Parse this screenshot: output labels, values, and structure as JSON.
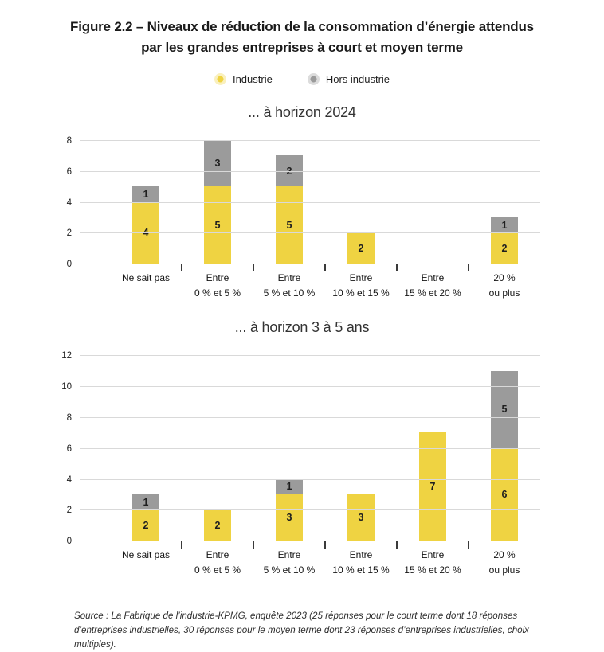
{
  "figure": {
    "title": "Figure 2.2 – Niveaux de réduction de la consommation d’énergie attendus par les grandes entreprises à court et moyen terme",
    "source": "Source : La Fabrique de l’industrie-KPMG, enquête 2023 (25 réponses pour le court terme dont 18 réponses d’entreprises industrielles, 30 réponses pour le moyen terme dont 23 réponses d’entreprises industrielles, choix multiples)."
  },
  "legend": {
    "items": [
      {
        "label": "Industrie",
        "color": "#EFD342"
      },
      {
        "label": "Hors industrie",
        "color": "#9B9B9B"
      }
    ]
  },
  "colors": {
    "industrie": "#EFD342",
    "hors_industrie": "#9B9B9B",
    "grid": "#D9D9D9",
    "axis_line": "#C2C2C2",
    "tick_mark": "#3A3A3A",
    "text": "#1A1A1A"
  },
  "chart_data": [
    {
      "type": "bar",
      "stacked": true,
      "title": "... à horizon 2024",
      "categories": [
        "Ne sait pas",
        "Entre\n0 % et 5 %",
        "Entre\n5 % et 10 %",
        "Entre\n10 % et 15 %",
        "Entre\n15 % et 20 %",
        "20 %\nou plus"
      ],
      "series": [
        {
          "name": "Industrie",
          "values": [
            4,
            5,
            5,
            2,
            0,
            2
          ]
        },
        {
          "name": "Hors industrie",
          "values": [
            1,
            3,
            2,
            0,
            0,
            1
          ]
        }
      ],
      "totals": [
        5,
        8,
        7,
        2,
        0,
        3
      ],
      "ylim": [
        0,
        8
      ],
      "yticks": [
        0,
        2,
        4,
        6,
        8
      ],
      "grid": true,
      "legend_position": "top",
      "value_labels": "inside-segments"
    },
    {
      "type": "bar",
      "stacked": true,
      "title": "... à horizon 3 à 5 ans",
      "categories": [
        "Ne sait pas",
        "Entre\n0 % et 5 %",
        "Entre\n5 % et 10 %",
        "Entre\n10 % et 15 %",
        "Entre\n15 % et 20 %",
        "20 %\nou plus"
      ],
      "series": [
        {
          "name": "Industrie",
          "values": [
            2,
            2,
            3,
            3,
            7,
            6
          ]
        },
        {
          "name": "Hors industrie",
          "values": [
            1,
            0,
            1,
            0,
            0,
            5
          ]
        }
      ],
      "totals": [
        3,
        2,
        4,
        3,
        7,
        11
      ],
      "ylim": [
        0,
        12
      ],
      "yticks": [
        0,
        2,
        4,
        6,
        8,
        10,
        12
      ],
      "grid": true,
      "legend_position": "top",
      "value_labels": "inside-segments"
    }
  ]
}
